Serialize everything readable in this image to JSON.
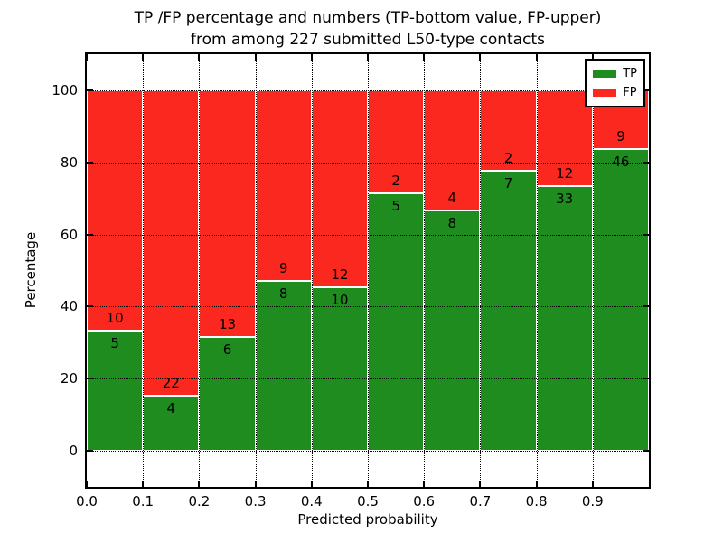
{
  "title_line1": "TP /FP percentage and numbers (TP-bottom value, FP-upper)",
  "title_line2": "from among 227 submitted L50-type contacts",
  "chart_data": {
    "type": "bar",
    "stacked": true,
    "normalized_to_percent": true,
    "title": "TP /FP percentage and numbers (TP-bottom value, FP-upper) from among 227 submitted L50-type contacts",
    "xlabel": "Predicted probability",
    "ylabel": "Percentage",
    "bin_width": 0.1,
    "categories": [
      "0.0",
      "0.1",
      "0.2",
      "0.3",
      "0.4",
      "0.5",
      "0.6",
      "0.7",
      "0.8",
      "0.9"
    ],
    "series": [
      {
        "name": "TP",
        "color": "#1E8C1E",
        "values": [
          5,
          4,
          6,
          8,
          10,
          5,
          8,
          7,
          33,
          46
        ]
      },
      {
        "name": "FP",
        "color": "#FA281E",
        "values": [
          10,
          22,
          13,
          9,
          12,
          2,
          4,
          2,
          12,
          9
        ]
      }
    ],
    "tp_percent_by_bin": [
      33.3,
      15.4,
      31.6,
      47.1,
      45.5,
      71.4,
      66.7,
      77.8,
      73.3,
      83.6
    ],
    "x_ticks": [
      "0.0",
      "0.1",
      "0.2",
      "0.3",
      "0.4",
      "0.5",
      "0.6",
      "0.7",
      "0.8",
      "0.9"
    ],
    "y_ticks": [
      0,
      20,
      40,
      60,
      80,
      100
    ],
    "xlim": [
      0,
      1
    ],
    "ylim": [
      -10,
      110
    ],
    "grid": "dotted",
    "legend": {
      "position": "upper right",
      "entries": [
        {
          "label": "TP",
          "color": "#1E8C1E"
        },
        {
          "label": "FP",
          "color": "#FA281E"
        }
      ]
    }
  }
}
